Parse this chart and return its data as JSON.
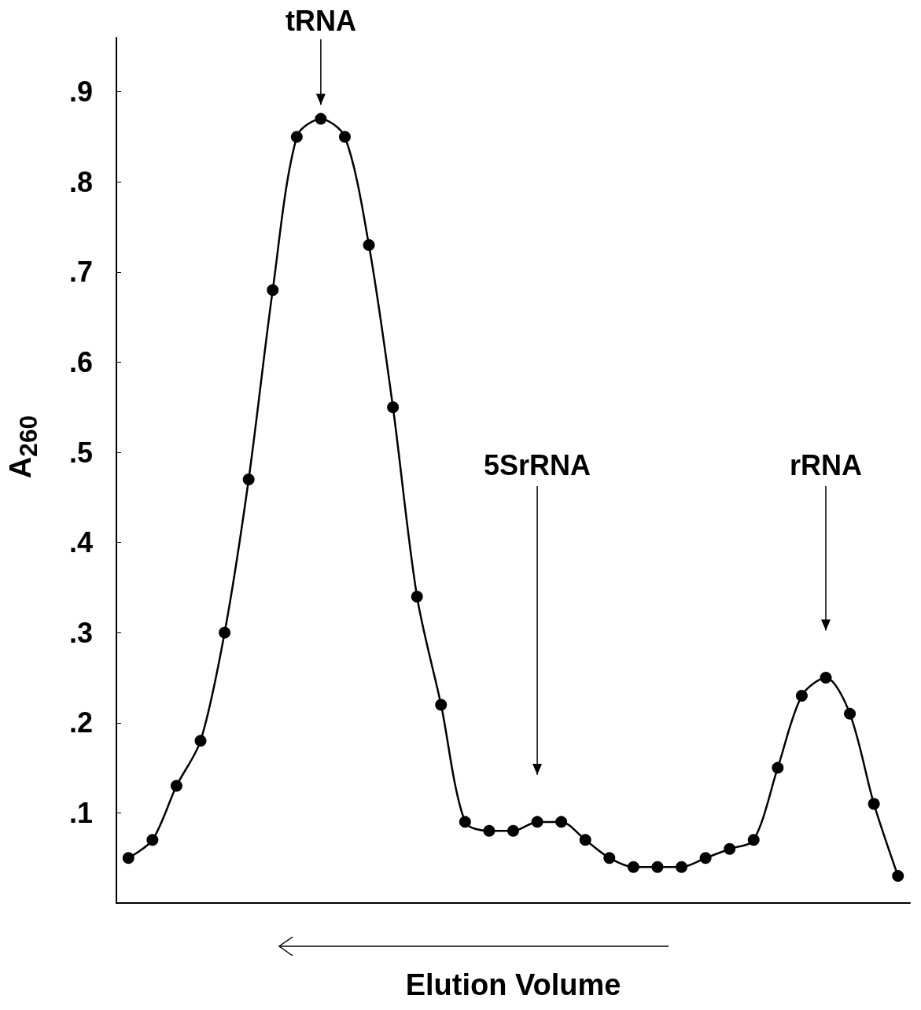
{
  "chart_data": {
    "type": "line",
    "xlabel": "Elution Volume",
    "ylabel": "A$_{260}$",
    "categories": [
      null,
      null,
      null,
      null,
      null,
      null,
      null,
      null,
      null,
      null,
      null,
      null,
      null,
      null,
      null,
      null,
      null,
      null,
      null,
      null,
      null,
      null,
      null,
      null,
      null,
      null,
      null,
      null,
      null,
      null,
      null,
      null,
      null
    ],
    "series": [
      {
        "color": "#000000",
        "values": [
          0.05,
          0.07,
          0.13,
          0.18,
          0.3,
          0.47,
          0.68,
          0.85,
          0.87,
          0.85,
          0.73,
          0.55,
          0.34,
          0.22,
          0.09,
          0.08,
          0.08,
          0.09,
          0.09,
          0.07,
          0.05,
          0.04,
          0.04,
          0.04,
          0.05,
          0.06,
          0.07,
          0.15,
          0.23,
          0.25,
          0.21,
          0.11,
          0.03
        ]
      }
    ],
    "ylim": [
      0,
      0.96
    ],
    "yticks": [
      {
        "value": 0.1,
        "label": ".1"
      },
      {
        "value": 0.2,
        "label": ".2"
      },
      {
        "value": 0.3,
        "label": ".3"
      },
      {
        "value": 0.4,
        "label": ".4"
      },
      {
        "value": 0.5,
        "label": ".5"
      },
      {
        "value": 0.6,
        "label": ".6"
      },
      {
        "value": 0.7,
        "label": ".7"
      },
      {
        "value": 0.8,
        "label": ".8"
      },
      {
        "value": 0.9,
        "label": ".9"
      }
    ],
    "annotations": [
      "tRNA",
      "5SrRNA",
      "rRNA"
    ],
    "tick_labels": "y",
    "grid": false,
    "marker": "circle",
    "line_style": "solid"
  }
}
